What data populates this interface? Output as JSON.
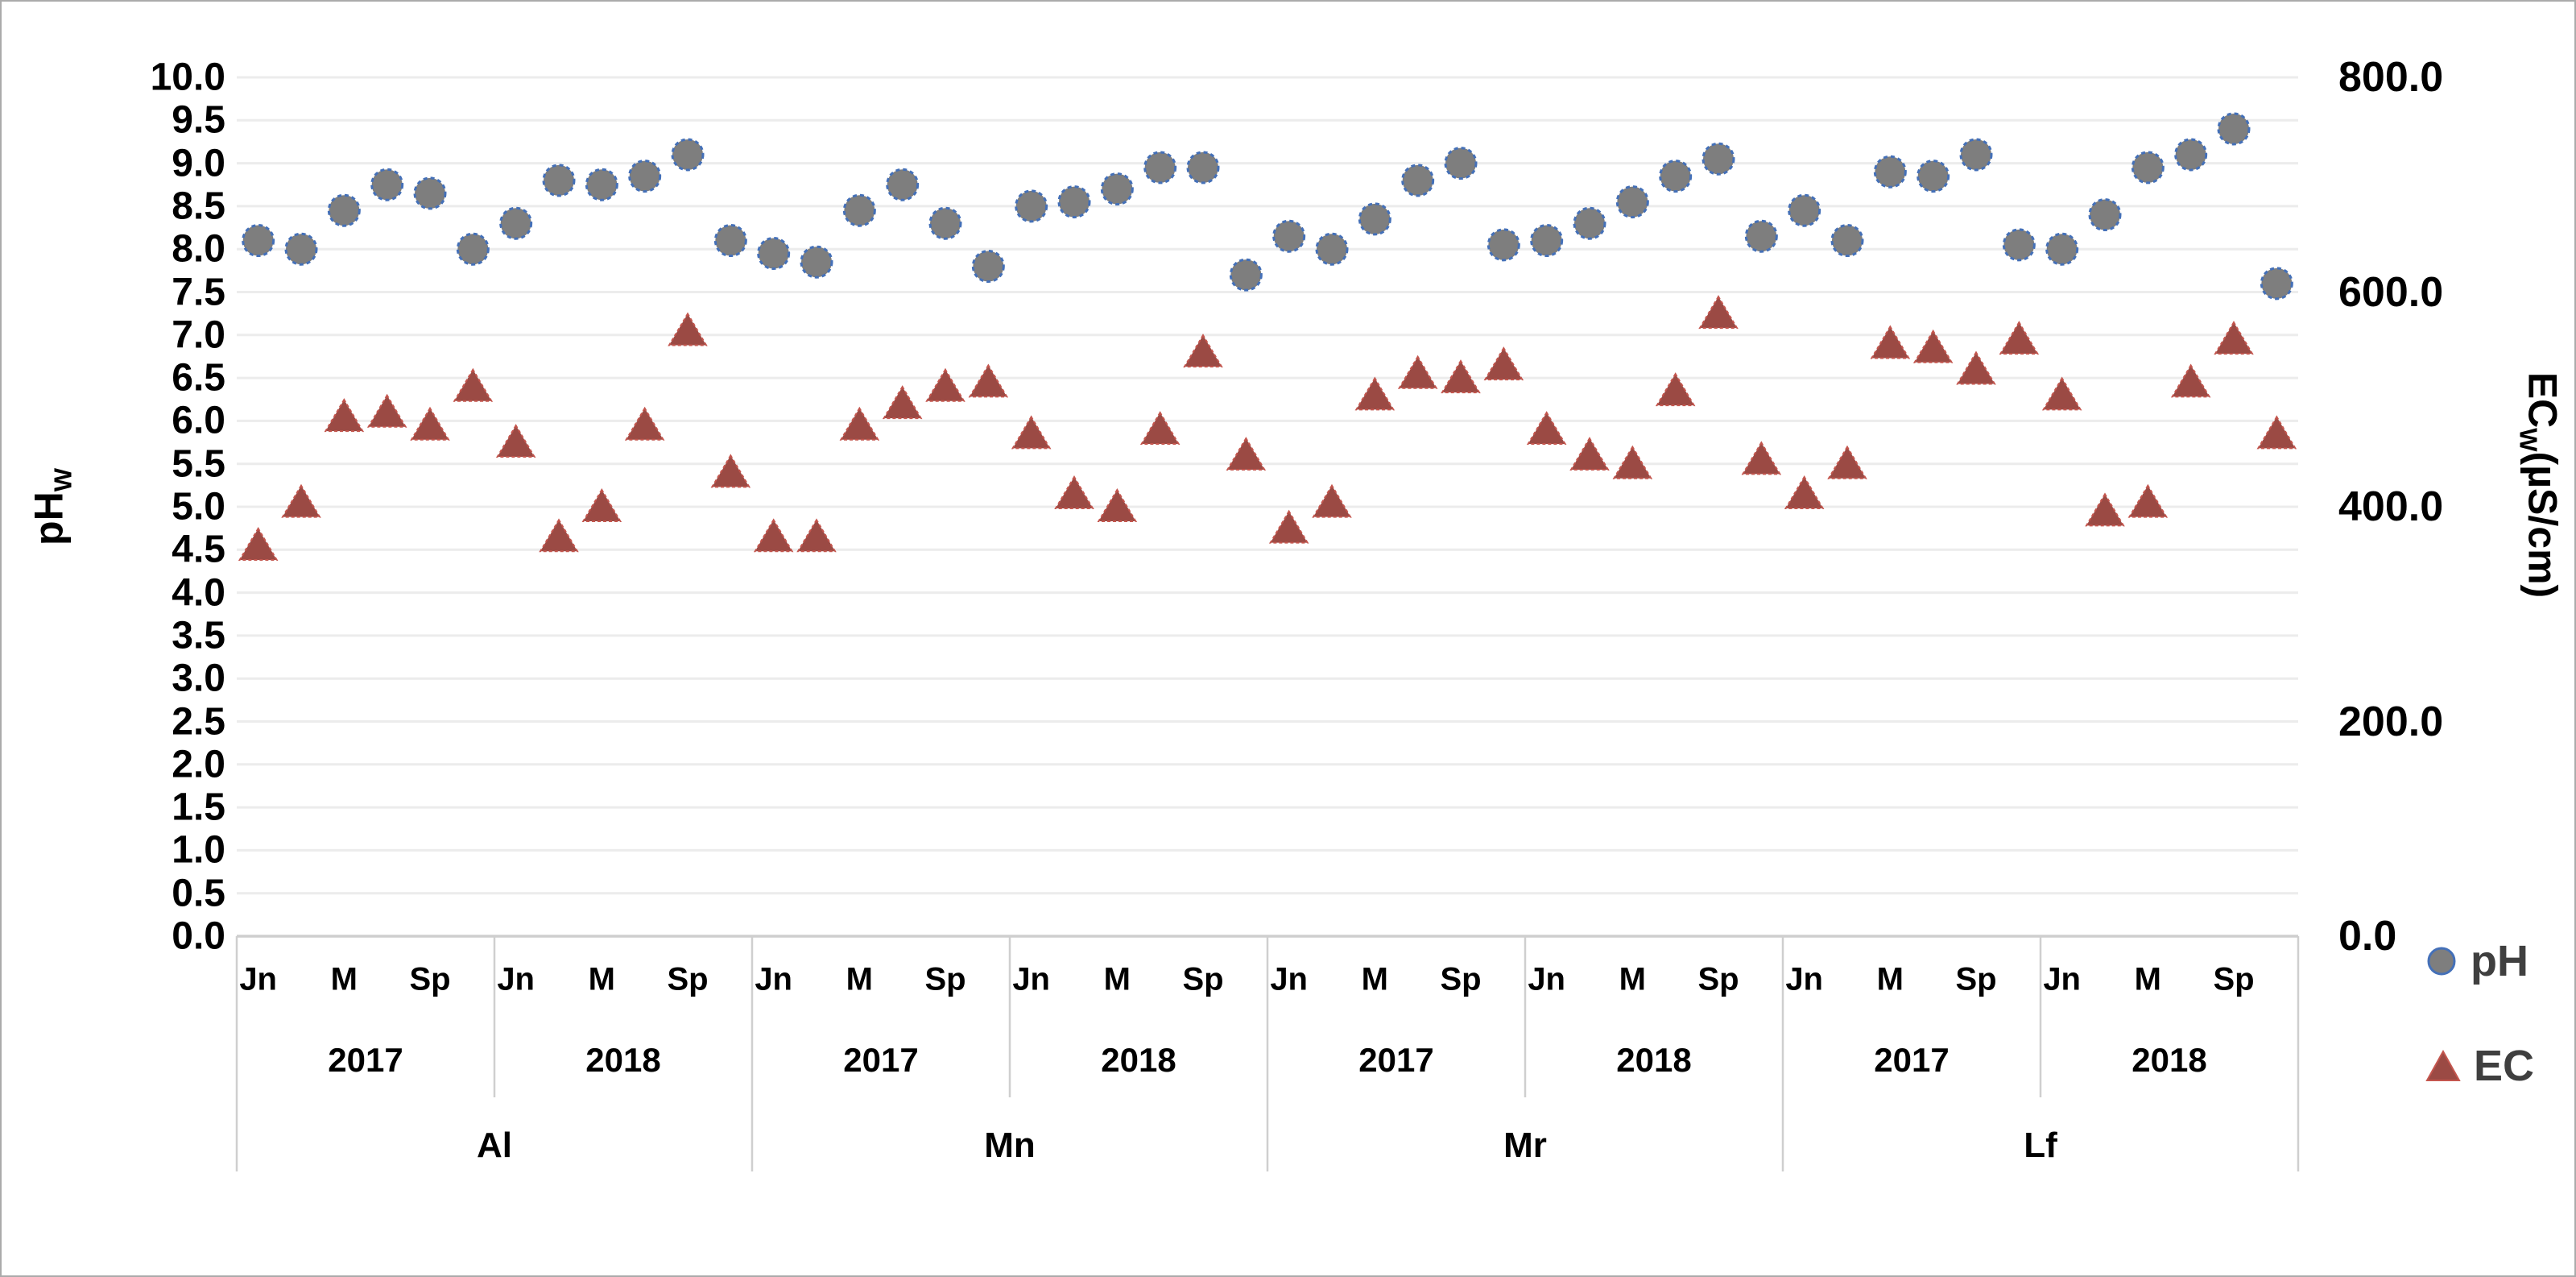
{
  "chart_data": {
    "type": "scatter",
    "title": "",
    "left_axis": {
      "title_main": "pH",
      "title_sub": "W",
      "min": 0,
      "max": 10,
      "step": 0.5,
      "decimals": 1
    },
    "right_axis": {
      "title_main": "EC",
      "title_sub": "W",
      "title_unit": "(µS/cm)",
      "min": 0,
      "max": 800,
      "step": 200,
      "decimals": 1
    },
    "x_axis": {
      "sites": [
        "Al",
        "Mn",
        "Mr",
        "Lf"
      ],
      "years": [
        "2017",
        "2018"
      ],
      "points_per_year": 6,
      "month_tick_labels": [
        "Jn",
        "M",
        "Sp"
      ],
      "month_tick_slots": [
        0,
        2,
        4
      ]
    },
    "legend": [
      {
        "label": "pH",
        "marker": "circle"
      },
      {
        "label": "EC",
        "marker": "triangle"
      }
    ],
    "colors": {
      "ph_fill": "#7e7e7e",
      "ph_edge": "#4470b8",
      "ec_fill": "#9b4a44",
      "ec_edge": "#c4564e",
      "gridline": "#ececec",
      "table_line": "#cfcfcf",
      "legend_text": "#3f3f3f"
    },
    "series": [
      {
        "name": "pH",
        "axis": "left",
        "marker": "circle",
        "values": {
          "Al": {
            "2017": [
              8.1,
              8.0,
              8.45,
              8.75,
              8.65,
              8.0
            ],
            "2018": [
              8.3,
              8.8,
              8.75,
              8.85,
              9.1,
              8.1
            ]
          },
          "Mn": {
            "2017": [
              7.95,
              7.85,
              8.45,
              8.75,
              8.3,
              7.8
            ],
            "2018": [
              8.5,
              8.55,
              8.7,
              8.95,
              8.95,
              7.7
            ]
          },
          "Mr": {
            "2017": [
              8.15,
              8.0,
              8.35,
              8.8,
              9.0,
              8.05
            ],
            "2018": [
              8.1,
              8.3,
              8.55,
              8.85,
              9.05,
              8.15
            ]
          },
          "Lf": {
            "2017": [
              8.45,
              8.1,
              8.9,
              8.85,
              9.1,
              8.05
            ],
            "2018": [
              8.0,
              8.4,
              8.95,
              9.1,
              9.4,
              7.6
            ]
          }
        }
      },
      {
        "name": "EC",
        "axis": "right",
        "marker": "triangle",
        "values": {
          "Al": {
            "2017": [
              364,
              404,
              484,
              488,
              476,
              512
            ],
            "2018": [
              460,
              372,
              400,
              476,
              564,
              432
            ]
          },
          "Mn": {
            "2017": [
              372,
              372,
              476,
              496,
              512,
              516
            ],
            "2018": [
              468,
              412,
              400,
              472,
              544,
              448
            ]
          },
          "Mr": {
            "2017": [
              380,
              404,
              504,
              524,
              520,
              532
            ],
            "2018": [
              472,
              448,
              440,
              508,
              580,
              444
            ]
          },
          "Lf": {
            "2017": [
              412,
              440,
              552,
              548,
              528,
              556
            ],
            "2018": [
              504,
              396,
              404,
              516,
              556,
              468
            ]
          }
        }
      }
    ]
  }
}
